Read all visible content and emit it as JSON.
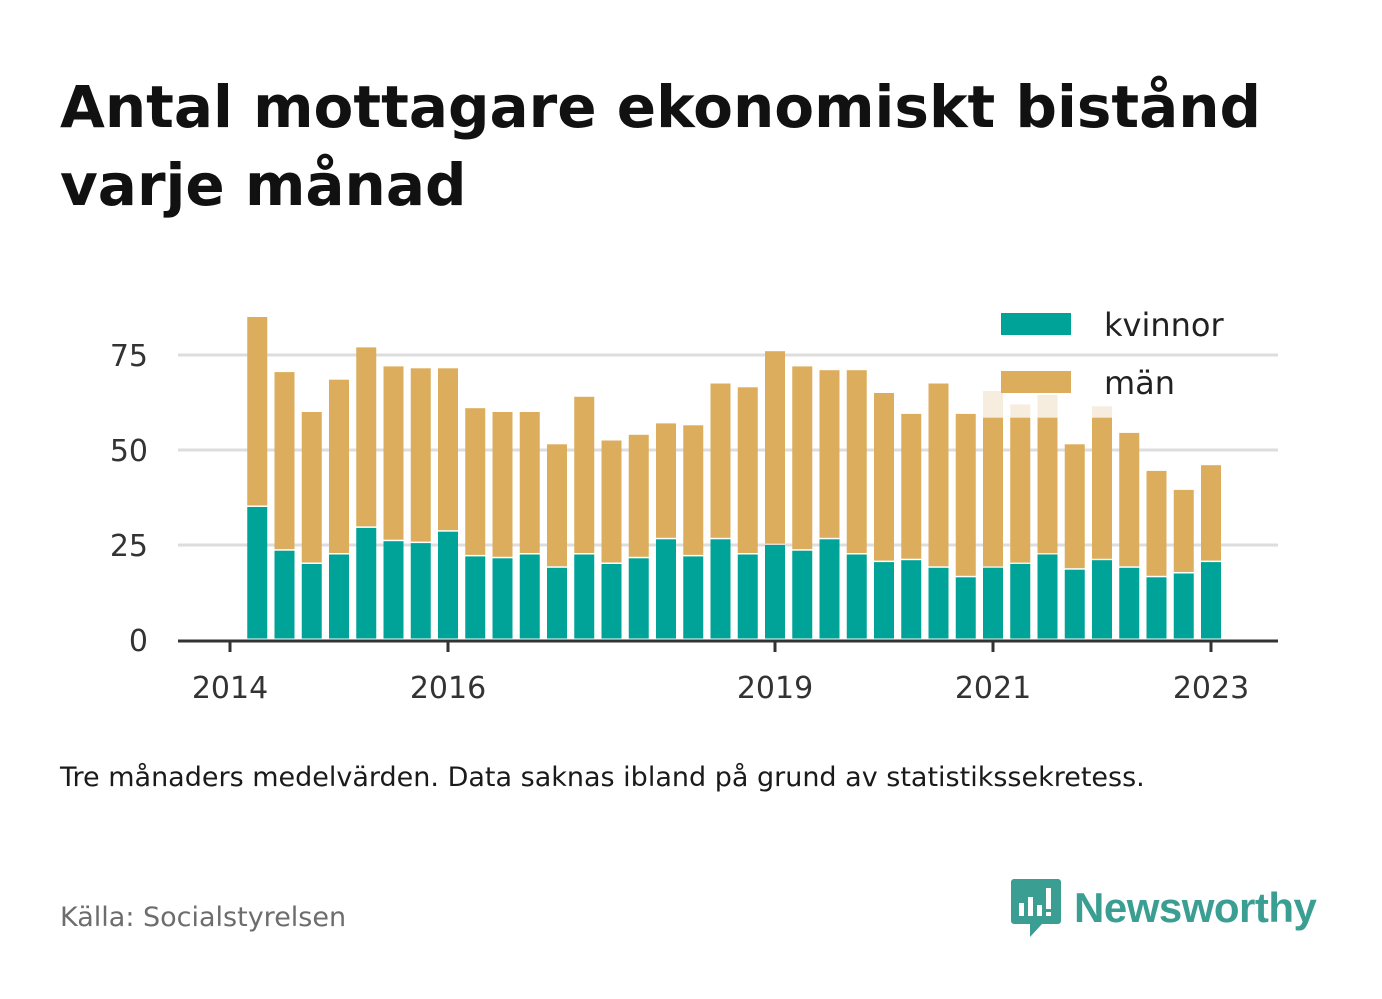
{
  "title": "Antal mottagare ekonomiskt bistånd varje månad",
  "note": "Tre månaders medelvärden. Data saknas ibland på grund av statistikssekretess.",
  "source": "Källa: Socialstyrelsen",
  "brand": {
    "name": "Newsworthy",
    "color": "#3a9e93",
    "icon": "newsworthy-logo-icon"
  },
  "colors": {
    "kvinnor": "#00a398",
    "man": "#dcad5c",
    "man_faded": "#f6eddf",
    "grid": "#dddddd",
    "axis": "#333333"
  },
  "chart_data": {
    "type": "bar",
    "stacked": true,
    "xlim": [
      "2014-01",
      "2023-09"
    ],
    "ylim": [
      0,
      87
    ],
    "yticks": [
      0,
      25,
      50,
      75
    ],
    "xticks": [
      {
        "label": "2014",
        "date": "2014-01"
      },
      {
        "label": "2016",
        "date": "2016-01"
      },
      {
        "label": "2019",
        "date": "2019-01"
      },
      {
        "label": "2021",
        "date": "2021-01"
      },
      {
        "label": "2023",
        "date": "2023-01"
      }
    ],
    "legend": {
      "position": "top-right",
      "entries": [
        "kvinnor",
        "män"
      ]
    },
    "grid": true,
    "dates": [
      "2014-04",
      "2014-07",
      "2014-10",
      "2015-01",
      "2015-04",
      "2015-07",
      "2015-10",
      "2016-01",
      "2016-04",
      "2016-07",
      "2016-10",
      "2017-01",
      "2017-04",
      "2017-07",
      "2017-10",
      "2018-01",
      "2018-04",
      "2018-07",
      "2018-10",
      "2019-01",
      "2019-04",
      "2019-07",
      "2019-10",
      "2020-01",
      "2020-04",
      "2020-07",
      "2020-10",
      "2021-01",
      "2021-04",
      "2021-07",
      "2021-10",
      "2022-01",
      "2022-04",
      "2022-07",
      "2022-10",
      "2023-01",
      "2023-04"
    ],
    "series": [
      {
        "name": "kvinnor",
        "values": [
          35,
          23.5,
          20,
          22.5,
          29.5,
          26,
          25.5,
          28.5,
          22,
          21.5,
          22.5,
          19,
          22.5,
          20,
          21.5,
          26.5,
          22,
          26.5,
          22.5,
          25,
          23.5,
          26.5,
          22.5,
          20.5,
          21,
          19,
          16.5,
          19,
          20,
          22.5,
          18.5,
          21,
          19,
          16.5,
          17.5,
          20.5,
          null
        ]
      },
      {
        "name": "män",
        "values": [
          50,
          47,
          40,
          46,
          47.5,
          46,
          46,
          43,
          39,
          38.5,
          37.5,
          32.5,
          41.5,
          32.5,
          32.5,
          30.5,
          34.5,
          41,
          44,
          51,
          48.5,
          44.5,
          48.5,
          44.5,
          38.5,
          48.5,
          43,
          39.5,
          38.5,
          36,
          33,
          37.5,
          35.5,
          28,
          22,
          25.5,
          null
        ]
      }
    ],
    "faded_total": [
      null,
      null,
      null,
      null,
      null,
      null,
      null,
      null,
      null,
      null,
      null,
      null,
      null,
      null,
      null,
      null,
      null,
      null,
      null,
      null,
      null,
      null,
      null,
      null,
      null,
      null,
      null,
      65.5,
      62,
      64.5,
      null,
      61.5,
      null,
      null,
      null,
      null,
      null
    ]
  }
}
